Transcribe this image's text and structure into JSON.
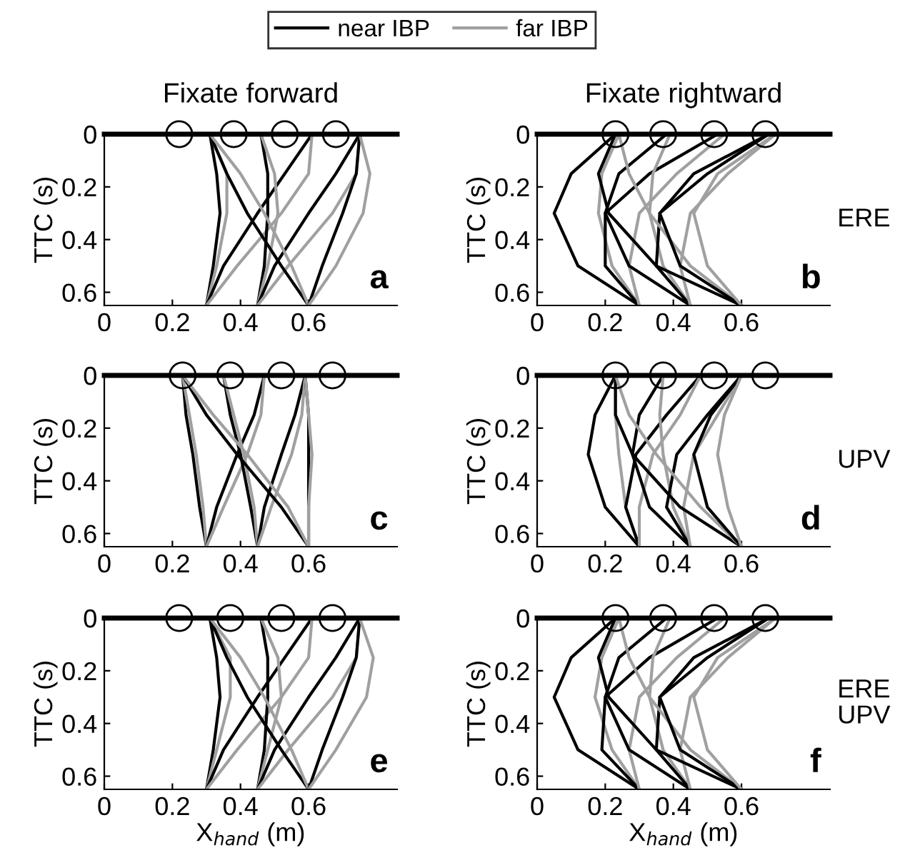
{
  "chart_data": [
    {
      "type": "line",
      "title": "Fixate forward",
      "ylabel": "TTC (s)",
      "xlim": [
        0,
        0.86
      ],
      "ylim": [
        0.65,
        0
      ],
      "xticks": [
        0,
        0.2,
        0.4,
        0.6
      ],
      "yticks": [
        0,
        0.2,
        0.4,
        0.6
      ],
      "legend": "top",
      "annotations": [
        "a"
      ],
      "ref_lines": [
        {
          "axis": "y",
          "value": 0,
          "color": "#000000"
        }
      ],
      "series": [
        {
          "name": "near IBP",
          "color": "#000000",
          "x": [
            0.3,
            0.32,
            0.34,
            0.33,
            0.31
          ],
          "values": [
            0.65,
            0.5,
            0.3,
            0.15,
            0
          ]
        },
        {
          "name": "far IBP",
          "color": "#a0a0a0",
          "x": [
            0.3,
            0.33,
            0.36,
            0.36,
            0.31
          ],
          "values": [
            0.65,
            0.5,
            0.3,
            0.15,
            0
          ]
        },
        {
          "color": "#000000",
          "x": [
            0.3,
            0.35,
            0.45,
            0.53,
            0.61
          ],
          "values": [
            0.65,
            0.5,
            0.3,
            0.15,
            0
          ]
        },
        {
          "color": "#a0a0a0",
          "x": [
            0.3,
            0.39,
            0.52,
            0.6,
            0.61
          ],
          "values": [
            0.65,
            0.5,
            0.3,
            0.15,
            0
          ]
        },
        {
          "color": "#000000",
          "x": [
            0.45,
            0.47,
            0.48,
            0.48,
            0.46
          ],
          "values": [
            0.65,
            0.5,
            0.3,
            0.15,
            0
          ]
        },
        {
          "color": "#a0a0a0",
          "x": [
            0.45,
            0.48,
            0.51,
            0.5,
            0.46
          ],
          "values": [
            0.65,
            0.5,
            0.3,
            0.15,
            0
          ]
        },
        {
          "color": "#000000",
          "x": [
            0.45,
            0.5,
            0.6,
            0.68,
            0.75
          ],
          "values": [
            0.65,
            0.5,
            0.3,
            0.15,
            0
          ]
        },
        {
          "color": "#a0a0a0",
          "x": [
            0.45,
            0.54,
            0.67,
            0.74,
            0.75
          ],
          "values": [
            0.65,
            0.5,
            0.3,
            0.15,
            0
          ]
        },
        {
          "color": "#000000",
          "x": [
            0.6,
            0.52,
            0.42,
            0.36,
            0.31
          ],
          "values": [
            0.65,
            0.5,
            0.3,
            0.15,
            0
          ]
        },
        {
          "color": "#a0a0a0",
          "x": [
            0.6,
            0.55,
            0.47,
            0.4,
            0.31
          ],
          "values": [
            0.65,
            0.5,
            0.3,
            0.15,
            0
          ]
        },
        {
          "color": "#000000",
          "x": [
            0.6,
            0.64,
            0.7,
            0.74,
            0.75
          ],
          "values": [
            0.65,
            0.5,
            0.3,
            0.15,
            0
          ]
        },
        {
          "color": "#a0a0a0",
          "x": [
            0.6,
            0.68,
            0.76,
            0.78,
            0.75
          ],
          "values": [
            0.65,
            0.5,
            0.3,
            0.15,
            0
          ]
        },
        {
          "type": "scatter",
          "marker": "circle",
          "color": "#000000",
          "x": [
            0.22,
            0.38,
            0.53,
            0.68
          ],
          "values": [
            0,
            0,
            0,
            0
          ]
        }
      ]
    },
    {
      "type": "line",
      "title": "Fixate rightward",
      "ylabel": "TTC (s)",
      "xlim": [
        0,
        0.86
      ],
      "ylim": [
        0.65,
        0
      ],
      "xticks": [
        0,
        0.2,
        0.4,
        0.6
      ],
      "yticks": [
        0,
        0.2,
        0.4,
        0.6
      ],
      "annotations": [
        "b",
        "ERE"
      ],
      "ref_lines": [
        {
          "axis": "y",
          "value": 0,
          "color": "#000000"
        }
      ],
      "series": [
        {
          "color": "#000000",
          "x": [
            0.3,
            0.12,
            0.05,
            0.1,
            0.23
          ],
          "values": [
            0.65,
            0.5,
            0.3,
            0.15,
            0
          ]
        },
        {
          "color": "#a0a0a0",
          "x": [
            0.3,
            0.22,
            0.18,
            0.19,
            0.24
          ],
          "values": [
            0.65,
            0.5,
            0.3,
            0.15,
            0
          ]
        },
        {
          "color": "#000000",
          "x": [
            0.3,
            0.2,
            0.2,
            0.33,
            0.53
          ],
          "values": [
            0.65,
            0.5,
            0.3,
            0.15,
            0
          ]
        },
        {
          "color": "#a0a0a0",
          "x": [
            0.3,
            0.27,
            0.3,
            0.41,
            0.55
          ],
          "values": [
            0.65,
            0.5,
            0.3,
            0.15,
            0
          ]
        },
        {
          "color": "#000000",
          "x": [
            0.45,
            0.27,
            0.2,
            0.24,
            0.38
          ],
          "values": [
            0.65,
            0.5,
            0.3,
            0.15,
            0
          ]
        },
        {
          "color": "#a0a0a0",
          "x": [
            0.45,
            0.37,
            0.33,
            0.34,
            0.39
          ],
          "values": [
            0.65,
            0.5,
            0.3,
            0.15,
            0
          ]
        },
        {
          "color": "#000000",
          "x": [
            0.45,
            0.35,
            0.36,
            0.5,
            0.68
          ],
          "values": [
            0.65,
            0.5,
            0.3,
            0.15,
            0
          ]
        },
        {
          "color": "#a0a0a0",
          "x": [
            0.45,
            0.42,
            0.45,
            0.56,
            0.7
          ],
          "values": [
            0.65,
            0.5,
            0.3,
            0.15,
            0
          ]
        },
        {
          "color": "#000000",
          "x": [
            0.6,
            0.35,
            0.21,
            0.18,
            0.23
          ],
          "values": [
            0.65,
            0.5,
            0.3,
            0.15,
            0
          ]
        },
        {
          "color": "#a0a0a0",
          "x": [
            0.6,
            0.45,
            0.33,
            0.27,
            0.24
          ],
          "values": [
            0.65,
            0.5,
            0.3,
            0.15,
            0
          ]
        },
        {
          "color": "#000000",
          "x": [
            0.6,
            0.42,
            0.36,
            0.46,
            0.68
          ],
          "values": [
            0.65,
            0.5,
            0.3,
            0.15,
            0
          ]
        },
        {
          "color": "#a0a0a0",
          "x": [
            0.6,
            0.5,
            0.46,
            0.53,
            0.7
          ],
          "values": [
            0.65,
            0.5,
            0.3,
            0.15,
            0
          ]
        },
        {
          "type": "scatter",
          "marker": "circle",
          "color": "#000000",
          "x": [
            0.23,
            0.37,
            0.52,
            0.67
          ],
          "values": [
            0,
            0,
            0,
            0
          ]
        }
      ]
    },
    {
      "type": "line",
      "ylabel": "TTC (s)",
      "xlim": [
        0,
        0.86
      ],
      "ylim": [
        0.65,
        0
      ],
      "xticks": [
        0,
        0.2,
        0.4,
        0.6
      ],
      "yticks": [
        0,
        0.2,
        0.4,
        0.6
      ],
      "annotations": [
        "c"
      ],
      "ref_lines": [
        {
          "axis": "y",
          "value": 0,
          "color": "#000000"
        }
      ],
      "series": [
        {
          "color": "#000000",
          "x": [
            0.3,
            0.28,
            0.26,
            0.24,
            0.23
          ],
          "values": [
            0.65,
            0.5,
            0.3,
            0.15,
            0
          ]
        },
        {
          "color": "#a0a0a0",
          "x": [
            0.3,
            0.29,
            0.27,
            0.25,
            0.23
          ],
          "values": [
            0.65,
            0.5,
            0.3,
            0.15,
            0
          ]
        },
        {
          "color": "#000000",
          "x": [
            0.3,
            0.33,
            0.39,
            0.44,
            0.47
          ],
          "values": [
            0.65,
            0.5,
            0.3,
            0.15,
            0
          ]
        },
        {
          "color": "#a0a0a0",
          "x": [
            0.3,
            0.35,
            0.42,
            0.46,
            0.47
          ],
          "values": [
            0.65,
            0.5,
            0.3,
            0.15,
            0
          ]
        },
        {
          "color": "#000000",
          "x": [
            0.45,
            0.43,
            0.4,
            0.37,
            0.35
          ],
          "values": [
            0.65,
            0.5,
            0.3,
            0.15,
            0
          ]
        },
        {
          "color": "#a0a0a0",
          "x": [
            0.45,
            0.44,
            0.41,
            0.38,
            0.35
          ],
          "values": [
            0.65,
            0.5,
            0.3,
            0.15,
            0
          ]
        },
        {
          "color": "#000000",
          "x": [
            0.45,
            0.47,
            0.52,
            0.56,
            0.59
          ],
          "values": [
            0.65,
            0.5,
            0.3,
            0.15,
            0
          ]
        },
        {
          "color": "#a0a0a0",
          "x": [
            0.45,
            0.49,
            0.55,
            0.58,
            0.59
          ],
          "values": [
            0.65,
            0.5,
            0.3,
            0.15,
            0
          ]
        },
        {
          "color": "#000000",
          "x": [
            0.6,
            0.52,
            0.39,
            0.3,
            0.23
          ],
          "values": [
            0.65,
            0.5,
            0.3,
            0.15,
            0
          ]
        },
        {
          "color": "#a0a0a0",
          "x": [
            0.6,
            0.54,
            0.42,
            0.32,
            0.23
          ],
          "values": [
            0.65,
            0.5,
            0.3,
            0.15,
            0
          ]
        },
        {
          "color": "#000000",
          "x": [
            0.6,
            0.6,
            0.6,
            0.6,
            0.59
          ],
          "values": [
            0.65,
            0.5,
            0.3,
            0.15,
            0
          ]
        },
        {
          "color": "#a0a0a0",
          "x": [
            0.6,
            0.6,
            0.61,
            0.6,
            0.59
          ],
          "values": [
            0.65,
            0.5,
            0.3,
            0.15,
            0
          ]
        },
        {
          "type": "scatter",
          "marker": "circle",
          "color": "#000000",
          "x": [
            0.23,
            0.37,
            0.52,
            0.67
          ],
          "values": [
            0,
            0,
            0,
            0
          ]
        }
      ]
    },
    {
      "type": "line",
      "ylabel": "TTC (s)",
      "xlim": [
        0,
        0.86
      ],
      "ylim": [
        0.65,
        0
      ],
      "xticks": [
        0,
        0.2,
        0.4,
        0.6
      ],
      "yticks": [
        0,
        0.2,
        0.4,
        0.6
      ],
      "annotations": [
        "d",
        "UPV"
      ],
      "ref_lines": [
        {
          "axis": "y",
          "value": 0,
          "color": "#000000"
        }
      ],
      "series": [
        {
          "color": "#000000",
          "x": [
            0.3,
            0.2,
            0.15,
            0.17,
            0.23
          ],
          "values": [
            0.65,
            0.5,
            0.3,
            0.15,
            0
          ]
        },
        {
          "color": "#a0a0a0",
          "x": [
            0.3,
            0.26,
            0.24,
            0.23,
            0.23
          ],
          "values": [
            0.65,
            0.5,
            0.3,
            0.15,
            0
          ]
        },
        {
          "color": "#000000",
          "x": [
            0.3,
            0.26,
            0.29,
            0.38,
            0.48
          ],
          "values": [
            0.65,
            0.5,
            0.3,
            0.15,
            0
          ]
        },
        {
          "color": "#a0a0a0",
          "x": [
            0.3,
            0.3,
            0.34,
            0.42,
            0.48
          ],
          "values": [
            0.65,
            0.5,
            0.3,
            0.15,
            0
          ]
        },
        {
          "color": "#000000",
          "x": [
            0.45,
            0.33,
            0.28,
            0.3,
            0.37
          ],
          "values": [
            0.65,
            0.5,
            0.3,
            0.15,
            0
          ]
        },
        {
          "color": "#a0a0a0",
          "x": [
            0.45,
            0.4,
            0.37,
            0.36,
            0.37
          ],
          "values": [
            0.65,
            0.5,
            0.3,
            0.15,
            0
          ]
        },
        {
          "color": "#000000",
          "x": [
            0.45,
            0.38,
            0.41,
            0.5,
            0.6
          ],
          "values": [
            0.65,
            0.5,
            0.3,
            0.15,
            0
          ]
        },
        {
          "color": "#a0a0a0",
          "x": [
            0.45,
            0.43,
            0.46,
            0.53,
            0.6
          ],
          "values": [
            0.65,
            0.5,
            0.3,
            0.15,
            0
          ]
        },
        {
          "color": "#000000",
          "x": [
            0.6,
            0.42,
            0.28,
            0.23,
            0.23
          ],
          "values": [
            0.65,
            0.5,
            0.3,
            0.15,
            0
          ]
        },
        {
          "color": "#a0a0a0",
          "x": [
            0.6,
            0.48,
            0.35,
            0.27,
            0.23
          ],
          "values": [
            0.65,
            0.5,
            0.3,
            0.15,
            0
          ]
        },
        {
          "color": "#000000",
          "x": [
            0.6,
            0.5,
            0.46,
            0.51,
            0.6
          ],
          "values": [
            0.65,
            0.5,
            0.3,
            0.15,
            0
          ]
        },
        {
          "color": "#a0a0a0",
          "x": [
            0.6,
            0.56,
            0.53,
            0.55,
            0.6
          ],
          "values": [
            0.65,
            0.5,
            0.3,
            0.15,
            0
          ]
        },
        {
          "type": "scatter",
          "marker": "circle",
          "color": "#000000",
          "x": [
            0.23,
            0.37,
            0.52,
            0.67
          ],
          "values": [
            0,
            0,
            0,
            0
          ]
        }
      ]
    },
    {
      "type": "line",
      "ylabel": "TTC (s)",
      "xlabel": "X$_{hand}$ (m)",
      "xlim": [
        0,
        0.86
      ],
      "ylim": [
        0.65,
        0
      ],
      "xticks": [
        0,
        0.2,
        0.4,
        0.6
      ],
      "yticks": [
        0,
        0.2,
        0.4,
        0.6
      ],
      "annotations": [
        "e"
      ],
      "ref_lines": [
        {
          "axis": "y",
          "value": 0,
          "color": "#000000"
        }
      ],
      "series": [
        {
          "color": "#000000",
          "x": [
            0.3,
            0.32,
            0.34,
            0.33,
            0.31
          ],
          "values": [
            0.65,
            0.5,
            0.3,
            0.15,
            0
          ]
        },
        {
          "color": "#a0a0a0",
          "x": [
            0.3,
            0.33,
            0.37,
            0.37,
            0.31
          ],
          "values": [
            0.65,
            0.5,
            0.3,
            0.15,
            0
          ]
        },
        {
          "color": "#000000",
          "x": [
            0.3,
            0.35,
            0.45,
            0.53,
            0.61
          ],
          "values": [
            0.65,
            0.5,
            0.3,
            0.15,
            0
          ]
        },
        {
          "color": "#a0a0a0",
          "x": [
            0.3,
            0.39,
            0.52,
            0.6,
            0.61
          ],
          "values": [
            0.65,
            0.5,
            0.3,
            0.15,
            0
          ]
        },
        {
          "color": "#000000",
          "x": [
            0.45,
            0.47,
            0.48,
            0.48,
            0.46
          ],
          "values": [
            0.65,
            0.5,
            0.3,
            0.15,
            0
          ]
        },
        {
          "color": "#a0a0a0",
          "x": [
            0.45,
            0.48,
            0.52,
            0.51,
            0.46
          ],
          "values": [
            0.65,
            0.5,
            0.3,
            0.15,
            0
          ]
        },
        {
          "color": "#000000",
          "x": [
            0.45,
            0.5,
            0.6,
            0.68,
            0.75
          ],
          "values": [
            0.65,
            0.5,
            0.3,
            0.15,
            0
          ]
        },
        {
          "color": "#a0a0a0",
          "x": [
            0.45,
            0.54,
            0.67,
            0.74,
            0.75
          ],
          "values": [
            0.65,
            0.5,
            0.3,
            0.15,
            0
          ]
        },
        {
          "color": "#000000",
          "x": [
            0.6,
            0.52,
            0.42,
            0.36,
            0.31
          ],
          "values": [
            0.65,
            0.5,
            0.3,
            0.15,
            0
          ]
        },
        {
          "color": "#a0a0a0",
          "x": [
            0.6,
            0.55,
            0.47,
            0.4,
            0.31
          ],
          "values": [
            0.65,
            0.5,
            0.3,
            0.15,
            0
          ]
        },
        {
          "color": "#000000",
          "x": [
            0.6,
            0.64,
            0.7,
            0.74,
            0.75
          ],
          "values": [
            0.65,
            0.5,
            0.3,
            0.15,
            0
          ]
        },
        {
          "color": "#a0a0a0",
          "x": [
            0.6,
            0.68,
            0.77,
            0.79,
            0.75
          ],
          "values": [
            0.65,
            0.5,
            0.3,
            0.15,
            0
          ]
        },
        {
          "type": "scatter",
          "marker": "circle",
          "color": "#000000",
          "x": [
            0.22,
            0.37,
            0.52,
            0.67
          ],
          "values": [
            0,
            0,
            0,
            0
          ]
        }
      ]
    },
    {
      "type": "line",
      "ylabel": "TTC (s)",
      "xlabel": "X$_{hand}$ (m)",
      "xlim": [
        0,
        0.86
      ],
      "ylim": [
        0.65,
        0
      ],
      "xticks": [
        0,
        0.2,
        0.4,
        0.6
      ],
      "yticks": [
        0,
        0.2,
        0.4,
        0.6
      ],
      "annotations": [
        "f",
        "ERE\nUPV"
      ],
      "ref_lines": [
        {
          "axis": "y",
          "value": 0,
          "color": "#000000"
        }
      ],
      "series": [
        {
          "color": "#000000",
          "x": [
            0.3,
            0.12,
            0.05,
            0.1,
            0.23
          ],
          "values": [
            0.65,
            0.5,
            0.3,
            0.15,
            0
          ]
        },
        {
          "color": "#a0a0a0",
          "x": [
            0.3,
            0.22,
            0.17,
            0.19,
            0.24
          ],
          "values": [
            0.65,
            0.5,
            0.3,
            0.15,
            0
          ]
        },
        {
          "color": "#000000",
          "x": [
            0.3,
            0.19,
            0.2,
            0.33,
            0.53
          ],
          "values": [
            0.65,
            0.5,
            0.3,
            0.15,
            0
          ]
        },
        {
          "color": "#a0a0a0",
          "x": [
            0.3,
            0.27,
            0.3,
            0.41,
            0.55
          ],
          "values": [
            0.65,
            0.5,
            0.3,
            0.15,
            0
          ]
        },
        {
          "color": "#000000",
          "x": [
            0.45,
            0.27,
            0.2,
            0.24,
            0.38
          ],
          "values": [
            0.65,
            0.5,
            0.3,
            0.15,
            0
          ]
        },
        {
          "color": "#a0a0a0",
          "x": [
            0.45,
            0.37,
            0.33,
            0.34,
            0.39
          ],
          "values": [
            0.65,
            0.5,
            0.3,
            0.15,
            0
          ]
        },
        {
          "color": "#000000",
          "x": [
            0.45,
            0.35,
            0.36,
            0.5,
            0.68
          ],
          "values": [
            0.65,
            0.5,
            0.3,
            0.15,
            0
          ]
        },
        {
          "color": "#a0a0a0",
          "x": [
            0.45,
            0.42,
            0.45,
            0.56,
            0.7
          ],
          "values": [
            0.65,
            0.5,
            0.3,
            0.15,
            0
          ]
        },
        {
          "color": "#000000",
          "x": [
            0.6,
            0.35,
            0.21,
            0.18,
            0.23
          ],
          "values": [
            0.65,
            0.5,
            0.3,
            0.15,
            0
          ]
        },
        {
          "color": "#a0a0a0",
          "x": [
            0.6,
            0.45,
            0.33,
            0.27,
            0.24
          ],
          "values": [
            0.65,
            0.5,
            0.3,
            0.15,
            0
          ]
        },
        {
          "color": "#000000",
          "x": [
            0.6,
            0.42,
            0.36,
            0.46,
            0.68
          ],
          "values": [
            0.65,
            0.5,
            0.3,
            0.15,
            0
          ]
        },
        {
          "color": "#a0a0a0",
          "x": [
            0.6,
            0.5,
            0.46,
            0.53,
            0.7
          ],
          "values": [
            0.65,
            0.5,
            0.3,
            0.15,
            0
          ]
        },
        {
          "type": "scatter",
          "marker": "circle",
          "color": "#000000",
          "x": [
            0.23,
            0.37,
            0.52,
            0.67
          ],
          "values": [
            0,
            0,
            0,
            0
          ]
        }
      ]
    }
  ]
}
